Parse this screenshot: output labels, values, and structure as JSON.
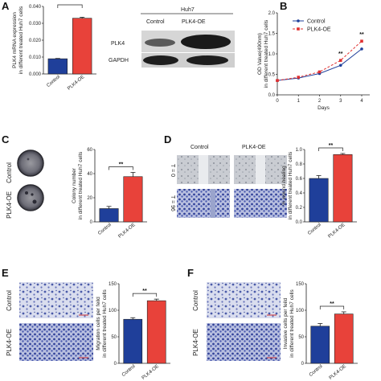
{
  "panels": {
    "A": {
      "letter": "A"
    },
    "B": {
      "letter": "B"
    },
    "C": {
      "letter": "C"
    },
    "D": {
      "letter": "D"
    },
    "E": {
      "letter": "E"
    },
    "F": {
      "letter": "F"
    }
  },
  "blot": {
    "cell_line": "Huh7",
    "lanes": [
      "Control",
      "PLK4-OE"
    ],
    "rows": [
      "PLK4",
      "GAPDH"
    ]
  },
  "image_labels": {
    "C": [
      "Control",
      "PLK4-OE"
    ],
    "D_cols": [
      "Control",
      "PLK4-OE"
    ],
    "D_rows": [
      "T = 0",
      "T = 96"
    ],
    "E": [
      "Control",
      "PLK4-OE"
    ],
    "F": [
      "Control",
      "PLK4-OE"
    ]
  },
  "colors": {
    "control": "#1f3f9a",
    "oe": "#e8423a",
    "line_control": "#1f3f9a",
    "line_oe": "#e03030"
  },
  "chart_data": [
    {
      "id": "A",
      "type": "bar",
      "categories": [
        "Control",
        "PLK4-OE"
      ],
      "values": [
        0.009,
        0.033
      ],
      "errors": [
        0.0002,
        0.0006
      ],
      "ylabel": [
        "PLK4 mRNA expression",
        "in different treated Huh7 cells"
      ],
      "ylim": [
        0,
        0.04
      ],
      "ticks": [
        "0.000",
        "0.010",
        "0.020",
        "0.030",
        "0.040"
      ],
      "tick_values": [
        0,
        0.01,
        0.02,
        0.03,
        0.04
      ],
      "significance": "",
      "xlabel": ""
    },
    {
      "id": "B",
      "type": "line",
      "x": [
        0,
        1,
        2,
        3,
        4
      ],
      "series": [
        {
          "name": "Control",
          "values": [
            0.35,
            0.41,
            0.52,
            0.72,
            1.12
          ]
        },
        {
          "name": "PLK4-OE",
          "values": [
            0.35,
            0.43,
            0.56,
            0.84,
            1.31
          ]
        }
      ],
      "ylabel": [
        "OD Value(490nm)",
        "in different treated Huh7 cells"
      ],
      "xlabel": "Days",
      "ylim": [
        0,
        2.0
      ],
      "ticks": [
        "0.0",
        "0.5",
        "1.0",
        "1.5",
        "2.0"
      ],
      "tick_values": [
        0,
        0.5,
        1.0,
        1.5,
        2.0
      ],
      "xticks": [
        "0",
        "1",
        "2",
        "3",
        "4"
      ],
      "significance": [
        "**",
        "**"
      ],
      "legend": "top-left"
    },
    {
      "id": "C",
      "type": "bar",
      "categories": [
        "Control",
        "PLK4-OE"
      ],
      "values": [
        11,
        37.5
      ],
      "errors": [
        1.8,
        3.5
      ],
      "ylabel": [
        "Colony number",
        "in different treated Huh7 cells"
      ],
      "ylim": [
        0,
        60
      ],
      "ticks": [
        "0",
        "20",
        "40",
        "60"
      ],
      "tick_values": [
        0,
        20,
        40,
        60
      ],
      "significance": "**"
    },
    {
      "id": "D",
      "type": "bar",
      "categories": [
        "Control",
        "PLK4-OE"
      ],
      "values": [
        0.6,
        0.93
      ],
      "errors": [
        0.04,
        0.015
      ],
      "ylabel": [
        "% wound healing",
        "in different treated Huh7 cells"
      ],
      "ylim": [
        0,
        1.0
      ],
      "ticks": [
        "0.0",
        "0.2",
        "0.4",
        "0.6",
        "0.8",
        "1.0"
      ],
      "tick_values": [
        0,
        0.2,
        0.4,
        0.6,
        0.8,
        1.0
      ],
      "significance": "**"
    },
    {
      "id": "E",
      "type": "bar",
      "categories": [
        "Control",
        "PLK4-OE"
      ],
      "values": [
        83,
        118
      ],
      "errors": [
        3,
        3
      ],
      "ylabel": [
        "Migration cells per feild",
        "in different treated Huh7 cells"
      ],
      "ylim": [
        0,
        150
      ],
      "ticks": [
        "0",
        "50",
        "100",
        "150"
      ],
      "tick_values": [
        0,
        50,
        100,
        150
      ],
      "significance": "**"
    },
    {
      "id": "F",
      "type": "bar",
      "categories": [
        "Control",
        "PLK4-OE"
      ],
      "values": [
        70,
        93
      ],
      "errors": [
        5,
        4
      ],
      "ylabel": [
        "Invasive cells per feild",
        "in different treated Huh7 cells"
      ],
      "ylim": [
        0,
        150
      ],
      "ticks": [
        "0",
        "50",
        "100",
        "150"
      ],
      "tick_values": [
        0,
        50,
        100,
        150
      ],
      "significance": "**"
    }
  ]
}
